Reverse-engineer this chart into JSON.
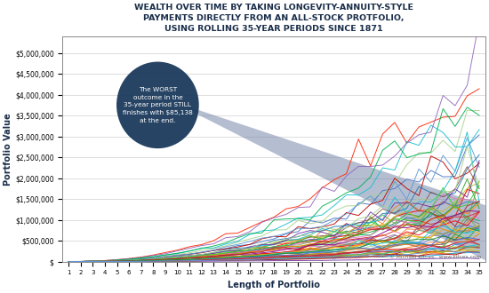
{
  "title_line1": "WEALTH OVER TIME BY TAKING LONGEVITY-ANNUITY-STYLE",
  "title_line2": "PAYMENTS DIRECTLY FROM AN ALL-STOCK PROTFOLIO,",
  "title_line3": "USING ROLLING 35-YEAR PERIODS SINCE 1871",
  "xlabel": "Length of Portfolio",
  "ylabel": "Portfolio Value",
  "yticks": [
    0,
    500000,
    1000000,
    1500000,
    2000000,
    2500000,
    3000000,
    3500000,
    4000000,
    4500000,
    5000000
  ],
  "ytick_labels": [
    "$",
    "$500,000",
    "$1,000,000",
    "$1,500,000",
    "$2,000,000",
    "$2,500,000",
    "$3,000,000",
    "$3,500,000",
    "$4,000,000",
    "$4,500,000",
    "$5,000,000"
  ],
  "xticks": [
    1,
    2,
    3,
    4,
    5,
    6,
    7,
    8,
    9,
    10,
    11,
    12,
    13,
    14,
    15,
    16,
    17,
    18,
    19,
    20,
    21,
    22,
    23,
    24,
    25,
    26,
    27,
    28,
    29,
    30,
    31,
    32,
    33,
    34,
    35
  ],
  "xlim": [
    0.5,
    35.5
  ],
  "ylim": [
    0,
    5400000
  ],
  "annotation_text": "The WORST\noutcome in the\n35-year period STILL\nfinishes with $85,138\nat the end.",
  "annotation_ellipse_color": "#1b3a5c",
  "annotation_text_color": "#ffffff",
  "triangle_color": "#6b7fa3",
  "triangle_alpha": 0.5,
  "bg_color": "#ffffff",
  "plot_bg_color": "#ffffff",
  "title_color": "#1a2e4a",
  "watermark": "© Michael Kitces,  www.kitces.com",
  "seed": 12345,
  "line_colors": [
    "#4472c4",
    "#ed7d31",
    "#a9d18e",
    "#ff2200",
    "#70ad47",
    "#00b0f0",
    "#7030a0",
    "#ffc000",
    "#c00000",
    "#00b050",
    "#5b9bd5",
    "#eb7d23",
    "#a9d18e",
    "#ff0000",
    "#70ad47",
    "#17becf",
    "#9467bd",
    "#e6ab00",
    "#aa0000",
    "#2ca02c",
    "#4472c4",
    "#ff7f0e",
    "#2ca02c",
    "#d62728",
    "#9467bd",
    "#8c564b",
    "#e377c2",
    "#7f7f7f",
    "#bcbd22",
    "#17becf",
    "#1f77b4",
    "#ff7f0e",
    "#2ca02c",
    "#d62728",
    "#9467bd",
    "#8c564b",
    "#e377c2",
    "#7f7f7f",
    "#bcbd22",
    "#17becf",
    "#4472c4",
    "#ed7d31",
    "#00b050",
    "#ff0000",
    "#7030a0",
    "#ffc000",
    "#00b0f0",
    "#c00000",
    "#70ad47",
    "#a9d18e",
    "#4169e1",
    "#ff8c00",
    "#32cd32",
    "#dc143c",
    "#8b008b",
    "#daa520",
    "#00ced1",
    "#b22222",
    "#228b22",
    "#6495ed",
    "#ff6347",
    "#40e0d0",
    "#ee82ee",
    "#f0e68c",
    "#dda0dd"
  ]
}
